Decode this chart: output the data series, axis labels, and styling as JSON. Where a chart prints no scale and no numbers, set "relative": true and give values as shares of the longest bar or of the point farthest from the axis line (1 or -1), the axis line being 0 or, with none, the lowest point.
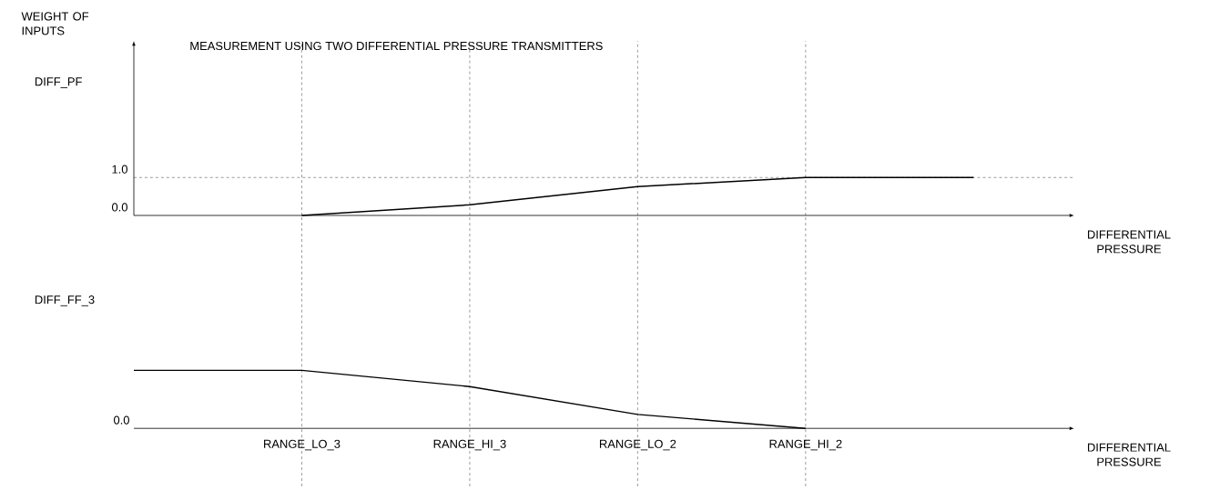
{
  "chart_data": [
    {
      "type": "line",
      "title": "MEASUREMENT USING TWO DIFFERENTIAL PRESSURE TRANSMITTERS",
      "ylabel": "WEIGHT OF INPUTS",
      "xlabel": "DIFFERENTIAL PRESSURE",
      "categories": [
        null,
        "RANGE_LO_3",
        "RANGE_HI_3",
        "RANGE_LO_2",
        "RANGE_HI_2",
        null
      ],
      "series": [
        {
          "name": "DIFF_PF",
          "color": "#000000",
          "values": [
            null,
            0,
            0.28,
            0.76,
            1,
            1
          ]
        }
      ],
      "ylim": [
        0,
        4.6
      ],
      "yticks": [
        {
          "value": 0,
          "label": "0.0"
        },
        {
          "value": 1,
          "label": "1.0"
        }
      ],
      "ref_lines": [
        {
          "axis": "x",
          "value": "RANGE_LO_3",
          "line_style": "dashed"
        },
        {
          "axis": "x",
          "value": "RANGE_HI_3",
          "line_style": "dashed"
        },
        {
          "axis": "x",
          "value": "RANGE_LO_2",
          "line_style": "dashed"
        },
        {
          "axis": "x",
          "value": "RANGE_HI_2",
          "line_style": "dashed"
        },
        {
          "axis": "y",
          "value": 1,
          "line_style": "dashed"
        }
      ],
      "tick_labels": "y"
    },
    {
      "type": "line",
      "xlabel": "DIFFERENTIAL PRESSURE",
      "relative": true,
      "categories": [
        null,
        "RANGE_LO_3",
        "RANGE_HI_3",
        "RANGE_LO_2",
        "RANGE_HI_2",
        null
      ],
      "series": [
        {
          "name": "DIFF_FF_3",
          "color": "#000000",
          "values": [
            1,
            1,
            0.72,
            0.24,
            0,
            null
          ]
        }
      ],
      "ref_lines": [
        {
          "axis": "x",
          "value": "RANGE_LO_3",
          "line_style": "dashed"
        },
        {
          "axis": "x",
          "value": "RANGE_HI_3",
          "line_style": "dashed"
        },
        {
          "axis": "x",
          "value": "RANGE_LO_2",
          "line_style": "dashed"
        },
        {
          "axis": "x",
          "value": "RANGE_HI_2",
          "line_style": "dashed"
        }
      ],
      "annotations": [
        "0.0"
      ],
      "tick_labels": "x"
    }
  ]
}
